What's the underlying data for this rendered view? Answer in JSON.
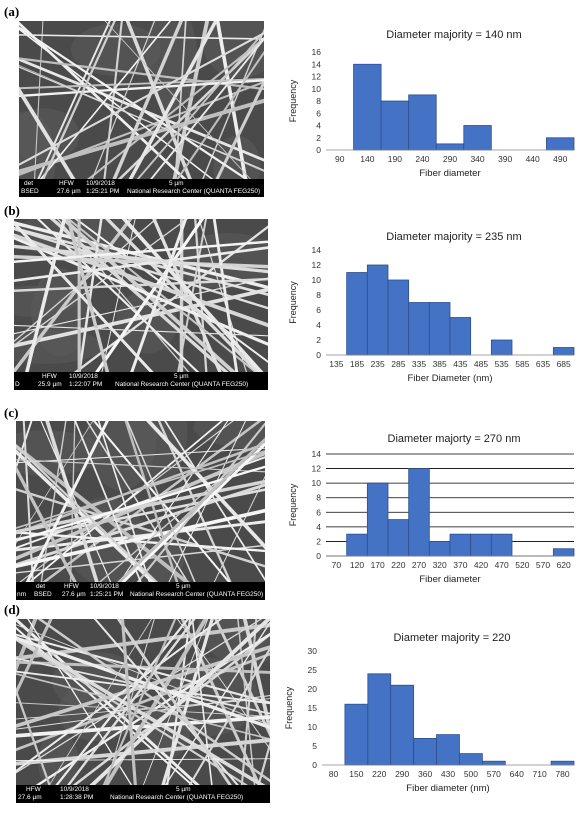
{
  "panels": [
    {
      "label": "(a)",
      "sem": {
        "line1": [
          "det",
          "HFW",
          "10/9/2018",
          "5 µm"
        ],
        "line2": [
          "BSED",
          "27.6 µm",
          "1:25:21 PM",
          "National Research Center (QUANTA FEG250)"
        ]
      },
      "chart_data": {
        "type": "bar",
        "title": "Diameter majority = 140 nm",
        "xlabel": "Fiber diameter",
        "ylabel": "Frequency",
        "categories": [
          "90",
          "140",
          "190",
          "240",
          "290",
          "340",
          "390",
          "440",
          "490"
        ],
        "values": [
          0,
          14,
          8,
          9,
          1,
          4,
          0,
          0,
          2
        ],
        "ylim": [
          0,
          16
        ],
        "yticks": [
          0,
          2,
          4,
          6,
          8,
          10,
          12,
          14,
          16
        ],
        "grid": false,
        "color": "#4472c4"
      }
    },
    {
      "label": "(b)",
      "sem": {
        "line1": [
          "HFW",
          "10/9/2018",
          "5 µm"
        ],
        "line2": [
          "D",
          "25.9 µm",
          "1:22:07 PM",
          "National Research Center (QUANTA FEG250)"
        ]
      },
      "chart_data": {
        "type": "bar",
        "title": "Diameter majority = 235 nm",
        "xlabel": "Fiber Diameter (nm)",
        "ylabel": "Frequency",
        "categories": [
          "135",
          "185",
          "235",
          "285",
          "335",
          "385",
          "435",
          "485",
          "535",
          "585",
          "635",
          "685"
        ],
        "values": [
          0,
          11,
          12,
          10,
          7,
          7,
          5,
          0,
          2,
          0,
          0,
          1
        ],
        "ylim": [
          0,
          14
        ],
        "yticks": [
          0,
          2,
          4,
          6,
          8,
          10,
          12,
          14
        ],
        "grid": false,
        "color": "#4472c4"
      }
    },
    {
      "label": "(c)",
      "sem": {
        "line1": [
          "det",
          "HFW",
          "10/9/2018",
          "5 µm"
        ],
        "line2": [
          "nm",
          "BSED",
          "27.6 µm",
          "1:25:21 PM",
          "National Research Center (QUANTA FEG250)"
        ]
      },
      "chart_data": {
        "type": "bar",
        "title": "Diameter majorty = 270 nm",
        "xlabel": "Fiber diameter",
        "ylabel": "Frequency",
        "categories": [
          "70",
          "120",
          "170",
          "220",
          "270",
          "320",
          "370",
          "420",
          "470",
          "520",
          "570",
          "620"
        ],
        "values": [
          0,
          3,
          10,
          5,
          12,
          2,
          3,
          3,
          3,
          0,
          0,
          1
        ],
        "ylim": [
          0,
          14
        ],
        "yticks": [
          0,
          2,
          4,
          6,
          8,
          10,
          12,
          14
        ],
        "grid": true,
        "color": "#4472c4"
      }
    },
    {
      "label": "(d)",
      "sem": {
        "line1": [
          "HFW",
          "10/9/2018",
          "5 µm"
        ],
        "line2": [
          "27.6 µm",
          "1:28:38 PM",
          "National Research Center (QUANTA FEG250)"
        ]
      },
      "chart_data": {
        "type": "bar",
        "title": "Diameter majority = 220",
        "xlabel": "Fiber diameter (nm)",
        "ylabel": "Frequency",
        "categories": [
          "80",
          "150",
          "220",
          "290",
          "360",
          "430",
          "500",
          "570",
          "640",
          "710",
          "780"
        ],
        "values": [
          0,
          16,
          24,
          21,
          7,
          8,
          3,
          1,
          0,
          0,
          1
        ],
        "ylim": [
          0,
          30
        ],
        "yticks": [
          0,
          5,
          10,
          15,
          20,
          25,
          30
        ],
        "grid": false,
        "color": "#4472c4"
      }
    }
  ]
}
